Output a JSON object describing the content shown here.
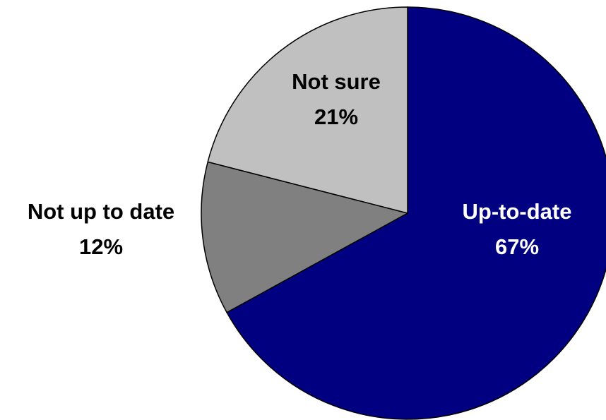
{
  "chart_data": {
    "type": "pie",
    "title": "",
    "slices": [
      {
        "label": "Up-to-date",
        "percent_label": "67%",
        "value": 67,
        "color": "#000080",
        "text_color": "#ffffff"
      },
      {
        "label": "Not up to date",
        "percent_label": "12%",
        "value": 12,
        "color": "#808080",
        "text_color": "#000000"
      },
      {
        "label": "Not sure",
        "percent_label": "21%",
        "value": 21,
        "color": "#c0c0c0",
        "text_color": "#000000"
      }
    ],
    "start_angle": "12 o'clock",
    "direction": "clockwise",
    "legend": "none"
  }
}
